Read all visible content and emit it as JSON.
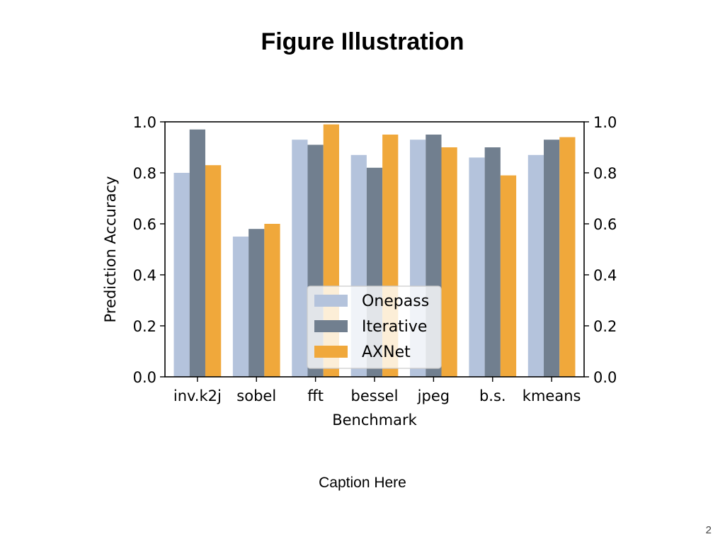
{
  "slide": {
    "title": "Figure Illustration",
    "caption": "Caption Here",
    "page_number": "2"
  },
  "chart_data": {
    "type": "bar",
    "title": "",
    "xlabel": "Benchmark",
    "ylabel": "Prediction Accuracy",
    "categories": [
      "inv.k2j",
      "sobel",
      "fft",
      "bessel",
      "jpeg",
      "b.s.",
      "kmeans"
    ],
    "series": [
      {
        "name": "Onepass",
        "color": "#b4c3dc",
        "values": [
          0.8,
          0.55,
          0.93,
          0.87,
          0.93,
          0.86,
          0.87
        ]
      },
      {
        "name": "Iterative",
        "color": "#717f8f",
        "values": [
          0.97,
          0.58,
          0.91,
          0.82,
          0.95,
          0.9,
          0.93
        ]
      },
      {
        "name": "AXNet",
        "color": "#f0a83b",
        "values": [
          0.83,
          0.6,
          0.99,
          0.95,
          0.9,
          0.79,
          0.94
        ]
      }
    ],
    "ylim": [
      0,
      1.0
    ],
    "yticks": [
      "0.0",
      "0.2",
      "0.4",
      "0.6",
      "0.8",
      "1.0"
    ],
    "secondary_y_axis": true,
    "grid": false,
    "legend_position": "lower-center"
  }
}
